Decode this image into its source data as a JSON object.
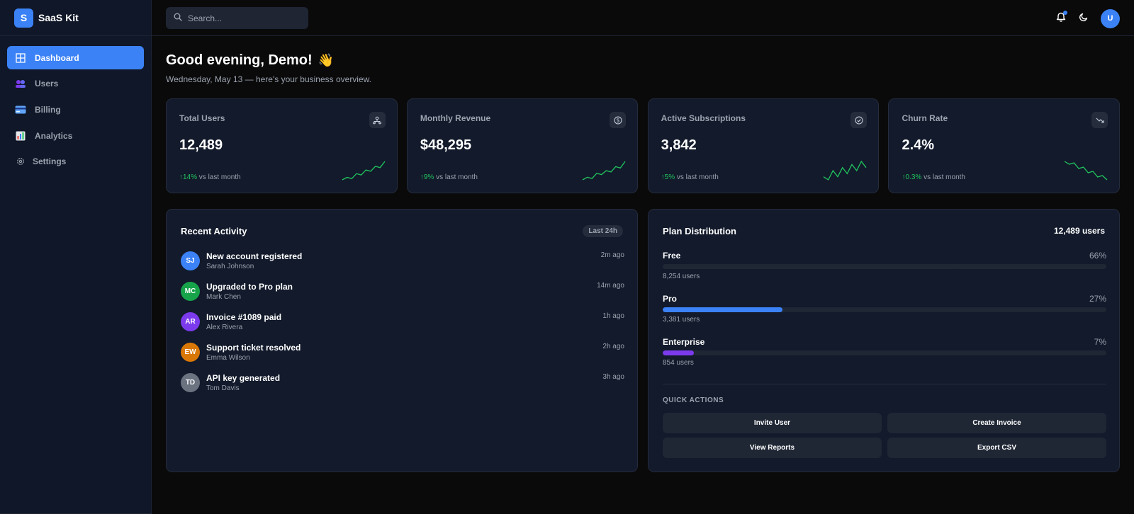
{
  "brand": {
    "logo_letter": "S",
    "name": "SaaS Kit",
    "accent": "#3b82f6"
  },
  "sidebar": {
    "items": [
      {
        "label": "Dashboard",
        "icon": "grid-icon",
        "active": true
      },
      {
        "label": "Users",
        "icon": "users-icon"
      },
      {
        "label": "Billing",
        "icon": "credit-card-icon"
      },
      {
        "label": "Analytics",
        "icon": "bar-chart-icon"
      },
      {
        "label": "Settings",
        "icon": "gear-icon"
      }
    ]
  },
  "topbar": {
    "search_placeholder": "Search...",
    "avatar_initial": "U"
  },
  "header": {
    "greeting": "Good evening, Demo!",
    "wave": "👋",
    "subtitle": "Wednesday, May 13 — here's your business overview."
  },
  "stats": [
    {
      "label": "Total Users",
      "value": "12,489",
      "change": "↑14%",
      "change_suffix": "vs last month",
      "icon": "user-network-icon",
      "spark": [
        4,
        6,
        5,
        9,
        8,
        12,
        11,
        15,
        14,
        19
      ]
    },
    {
      "label": "Monthly Revenue",
      "value": "$48,295",
      "change": "↑9%",
      "change_suffix": "vs last month",
      "icon": "dollar-icon",
      "spark": [
        3,
        5,
        4,
        8,
        7,
        10,
        9,
        13,
        12,
        17
      ]
    },
    {
      "label": "Active Subscriptions",
      "value": "3,842",
      "change": "↑5%",
      "change_suffix": "vs last month",
      "icon": "check-circle-icon",
      "spark": [
        6,
        4,
        10,
        6,
        12,
        8,
        14,
        10,
        16,
        12
      ]
    },
    {
      "label": "Churn Rate",
      "value": "2.4%",
      "change": "↑0.3%",
      "change_suffix": "vs last month",
      "icon": "trending-down-icon",
      "spark": [
        18,
        16,
        17,
        13,
        14,
        10,
        11,
        7,
        8,
        5
      ]
    }
  ],
  "activity": {
    "title": "Recent Activity",
    "badge": "Last 24h",
    "items": [
      {
        "initials": "SJ",
        "color": "#3b82f6",
        "title": "New account registered",
        "user": "Sarah Johnson",
        "time": "2m ago"
      },
      {
        "initials": "MC",
        "color": "#16a34a",
        "title": "Upgraded to Pro plan",
        "user": "Mark Chen",
        "time": "14m ago"
      },
      {
        "initials": "AR",
        "color": "#7c3aed",
        "title": "Invoice #1089 paid",
        "user": "Alex Rivera",
        "time": "1h ago"
      },
      {
        "initials": "EW",
        "color": "#d97706",
        "title": "Support ticket resolved",
        "user": "Emma Wilson",
        "time": "2h ago"
      },
      {
        "initials": "TD",
        "color": "#6b7280",
        "title": "API key generated",
        "user": "Tom Davis",
        "time": "3h ago"
      }
    ]
  },
  "plans": {
    "title": "Plan Distribution",
    "total": "12,489 users",
    "items": [
      {
        "name": "Free",
        "pct_label": "66%",
        "pct": 66,
        "count": "8,254 users",
        "color": "#1f2735"
      },
      {
        "name": "Pro",
        "pct_label": "27%",
        "pct": 27,
        "count": "3,381 users",
        "color": "#3b82f6"
      },
      {
        "name": "Enterprise",
        "pct_label": "7%",
        "pct": 7,
        "count": "854 users",
        "color": "#7c3aed"
      }
    ],
    "quick_actions_title": "QUICK ACTIONS",
    "quick_actions": [
      "Invite User",
      "Create Invoice",
      "View Reports",
      "Export CSV"
    ]
  },
  "colors": {
    "positive": "#22c55e",
    "card_bg": "#121a2b",
    "page_bg": "#0a0a0b"
  }
}
